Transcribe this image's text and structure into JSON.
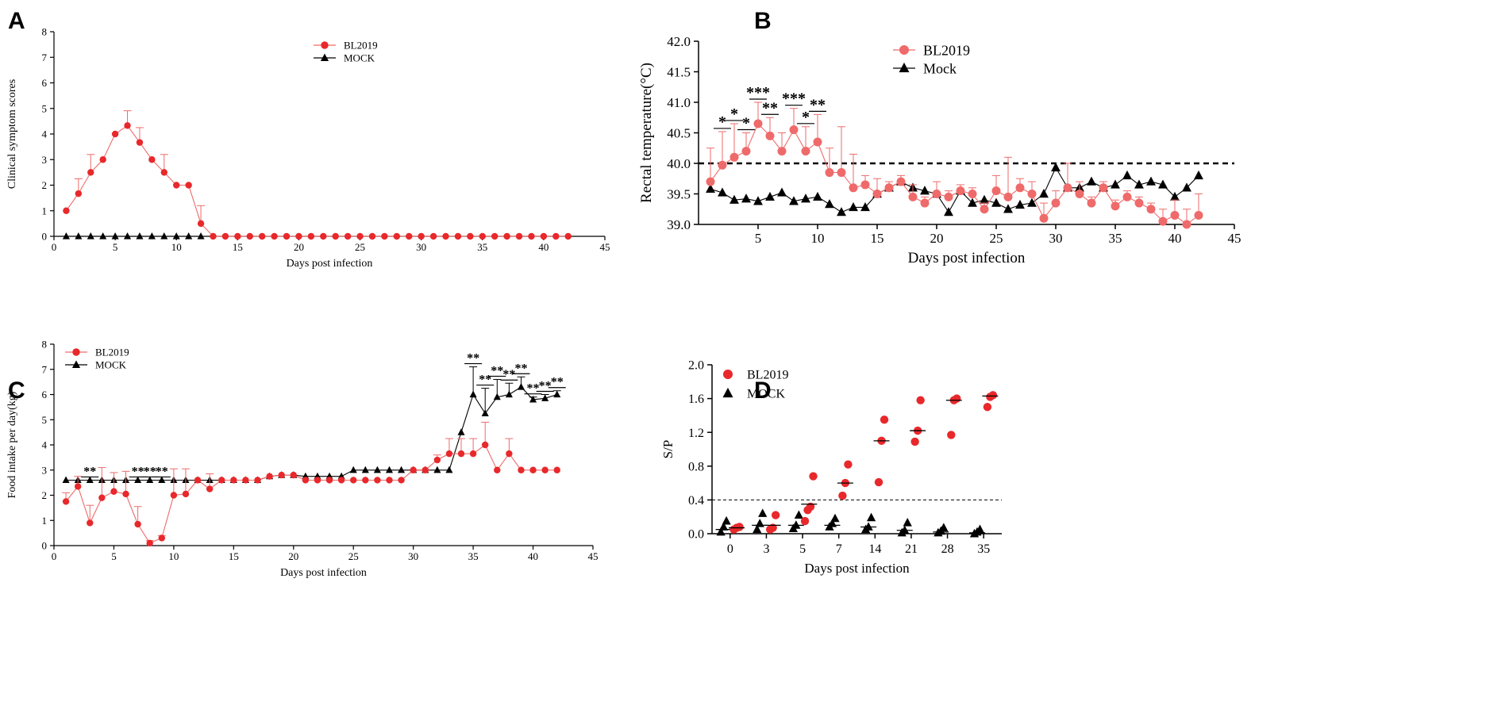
{
  "colors": {
    "bl": "#e8282b",
    "blLight": "#ef6a6a",
    "mock": "#000000"
  },
  "chart_data": [
    {
      "id": "A",
      "type": "line",
      "panel_label": "A",
      "xlabel": "Days post infection",
      "ylabel": "Clinical symptom scores",
      "xlim": [
        0,
        45
      ],
      "ylim": [
        0,
        8
      ],
      "xticks": [
        0,
        5,
        10,
        15,
        20,
        25,
        30,
        35,
        40,
        45
      ],
      "yticks": [
        0,
        1,
        2,
        3,
        4,
        5,
        6,
        7,
        8
      ],
      "legend": [
        "BL2019",
        "MOCK"
      ],
      "series": [
        {
          "name": "BL2019",
          "marker": "circle",
          "x": [
            1,
            2,
            3,
            4,
            5,
            6,
            7,
            8,
            9,
            10,
            11,
            12,
            13,
            14,
            15,
            16,
            17,
            18,
            19,
            20,
            21,
            22,
            23,
            24,
            25,
            26,
            27,
            28,
            29,
            30,
            31,
            32,
            33,
            34,
            35,
            36,
            37,
            38,
            39,
            40,
            41,
            42
          ],
          "y": [
            1,
            1.67,
            2.5,
            3,
            4,
            4.33,
            3.67,
            3,
            2.5,
            2,
            2,
            0.5,
            0,
            0,
            0,
            0,
            0,
            0,
            0,
            0,
            0,
            0,
            0,
            0,
            0,
            0,
            0,
            0,
            0,
            0,
            0,
            0,
            0,
            0,
            0,
            0,
            0,
            0,
            0,
            0,
            0,
            0
          ],
          "err": [
            0,
            0.58,
            0.7,
            0,
            0,
            0.58,
            0.58,
            0,
            0.7,
            0,
            0,
            0.7,
            0,
            0,
            0,
            0,
            0,
            0,
            0,
            0,
            0,
            0,
            0,
            0,
            0,
            0,
            0,
            0,
            0,
            0,
            0,
            0,
            0,
            0,
            0,
            0,
            0,
            0,
            0,
            0,
            0,
            0
          ]
        },
        {
          "name": "MOCK",
          "marker": "triangle",
          "x": [
            1,
            2,
            3,
            4,
            5,
            6,
            7,
            8,
            9,
            10,
            11,
            12
          ],
          "y": [
            0,
            0,
            0,
            0,
            0,
            0,
            0,
            0,
            0,
            0,
            0,
            0
          ]
        }
      ]
    },
    {
      "id": "B",
      "type": "line",
      "panel_label": "B",
      "xlabel": "Days post infection",
      "ylabel": "Rectal temperature(°C)",
      "xlim": [
        0,
        45
      ],
      "ylim": [
        39.0,
        42.0
      ],
      "xticks": [
        5,
        10,
        15,
        20,
        25,
        30,
        35,
        40,
        45
      ],
      "yticks": [
        39.0,
        39.5,
        40.0,
        40.5,
        41.0,
        41.5,
        42.0
      ],
      "ytick_labels": [
        "39.0",
        "39.5",
        "40.0",
        "40.5",
        "41.0",
        "41.5",
        "42.0"
      ],
      "threshold": 40.0,
      "legend": [
        "BL2019",
        "Mock"
      ],
      "series": [
        {
          "name": "BL2019",
          "marker": "circle",
          "x": [
            1,
            2,
            3,
            4,
            5,
            6,
            7,
            8,
            9,
            10,
            11,
            12,
            13,
            14,
            15,
            16,
            17,
            18,
            19,
            20,
            21,
            22,
            23,
            24,
            25,
            26,
            27,
            28,
            29,
            30,
            31,
            32,
            33,
            34,
            35,
            36,
            37,
            38,
            39,
            40,
            41,
            42
          ],
          "y": [
            39.7,
            39.97,
            40.1,
            40.2,
            40.65,
            40.45,
            40.2,
            40.55,
            40.2,
            40.35,
            39.85,
            39.85,
            39.6,
            39.65,
            39.5,
            39.6,
            39.7,
            39.45,
            39.35,
            39.5,
            39.45,
            39.55,
            39.5,
            39.25,
            39.55,
            39.45,
            39.6,
            39.5,
            39.1,
            39.35,
            39.6,
            39.5,
            39.35,
            39.6,
            39.3,
            39.45,
            39.35,
            39.25,
            39.05,
            39.15,
            39.0,
            39.15
          ],
          "err": [
            0.55,
            0.55,
            0.55,
            0.3,
            0.35,
            0.3,
            0.3,
            0.35,
            0.4,
            0.45,
            0.4,
            0.75,
            0.55,
            0.15,
            0.25,
            0.1,
            0.1,
            0.2,
            0.1,
            0.2,
            0.1,
            0.1,
            0.1,
            0.1,
            0.25,
            0.65,
            0.15,
            0.2,
            0.25,
            0.2,
            0.4,
            0.2,
            0.1,
            0.1,
            0.1,
            0.1,
            0.1,
            0.1,
            0.2,
            0.25,
            0.25,
            0.35
          ]
        },
        {
          "name": "Mock",
          "marker": "triangle",
          "x": [
            1,
            2,
            3,
            4,
            5,
            6,
            7,
            8,
            9,
            10,
            11,
            12,
            13,
            14,
            15,
            16,
            17,
            18,
            19,
            20,
            21,
            22,
            23,
            24,
            25,
            26,
            27,
            28,
            29,
            30,
            31,
            32,
            33,
            34,
            35,
            36,
            37,
            38,
            39,
            40,
            41,
            42
          ],
          "y": [
            39.58,
            39.52,
            39.4,
            39.42,
            39.38,
            39.45,
            39.52,
            39.38,
            39.42,
            39.45,
            39.33,
            39.2,
            39.28,
            39.28,
            39.5,
            39.6,
            39.7,
            39.6,
            39.55,
            39.5,
            39.2,
            39.55,
            39.35,
            39.4,
            39.35,
            39.25,
            39.32,
            39.35,
            39.5,
            39.93,
            39.6,
            39.6,
            39.7,
            39.6,
            39.65,
            39.8,
            39.65,
            39.7,
            39.65,
            39.45,
            39.6,
            39.8
          ]
        }
      ],
      "significance": [
        {
          "x": 2,
          "text": "*"
        },
        {
          "x": 3,
          "text": "*"
        },
        {
          "x": 4,
          "text": "*"
        },
        {
          "x": 5,
          "text": "***"
        },
        {
          "x": 6,
          "text": "**"
        },
        {
          "x": 8,
          "text": "***"
        },
        {
          "x": 9,
          "text": "*"
        },
        {
          "x": 10,
          "text": "**"
        }
      ]
    },
    {
      "id": "C",
      "type": "line",
      "panel_label": "C",
      "xlabel": "Days post infection",
      "ylabel": "Food intake per day(kg)",
      "xlim": [
        0,
        45
      ],
      "ylim": [
        0,
        8
      ],
      "xticks": [
        0,
        5,
        10,
        15,
        20,
        25,
        30,
        35,
        40,
        45
      ],
      "yticks": [
        0,
        1,
        2,
        3,
        4,
        5,
        6,
        7,
        8
      ],
      "legend": [
        "BL2019",
        "MOCK"
      ],
      "series": [
        {
          "name": "BL2019",
          "marker": "circle",
          "x": [
            1,
            2,
            3,
            4,
            5,
            6,
            7,
            8,
            9,
            10,
            11,
            12,
            13,
            14,
            15,
            16,
            17,
            18,
            19,
            20,
            21,
            22,
            23,
            24,
            25,
            26,
            27,
            28,
            29,
            30,
            31,
            32,
            33,
            34,
            35,
            36,
            37,
            38,
            39,
            40,
            41,
            42
          ],
          "y": [
            1.75,
            2.35,
            0.9,
            1.9,
            2.15,
            2.05,
            0.85,
            0.1,
            0.3,
            2.0,
            2.05,
            2.6,
            2.25,
            2.6,
            2.6,
            2.6,
            2.6,
            2.75,
            2.8,
            2.8,
            2.6,
            2.6,
            2.6,
            2.6,
            2.6,
            2.6,
            2.6,
            2.6,
            2.6,
            3.0,
            3.0,
            3.4,
            3.65,
            3.65,
            3.65,
            4.0,
            3.0,
            3.65,
            3.0,
            3.0,
            3.0,
            3.0
          ],
          "err": [
            0.35,
            0.4,
            0.7,
            1.2,
            0.75,
            0.9,
            0.7,
            0.1,
            0.1,
            1.05,
            1.0,
            0,
            0.6,
            0,
            0,
            0,
            0,
            0,
            0,
            0,
            0,
            0,
            0,
            0,
            0,
            0,
            0,
            0,
            0,
            0,
            0,
            0.2,
            0.6,
            0.6,
            0.6,
            0.9,
            0,
            0.6,
            0,
            0,
            0,
            0
          ]
        },
        {
          "name": "MOCK",
          "marker": "triangle",
          "x": [
            1,
            2,
            3,
            4,
            5,
            6,
            7,
            8,
            9,
            10,
            11,
            12,
            13,
            14,
            15,
            16,
            17,
            18,
            19,
            20,
            21,
            22,
            23,
            24,
            25,
            26,
            27,
            28,
            29,
            30,
            31,
            32,
            33,
            34,
            35,
            36,
            37,
            38,
            39,
            40,
            41,
            42
          ],
          "y": [
            2.6,
            2.6,
            2.6,
            2.6,
            2.6,
            2.6,
            2.6,
            2.6,
            2.6,
            2.6,
            2.6,
            2.6,
            2.6,
            2.6,
            2.6,
            2.6,
            2.6,
            2.75,
            2.8,
            2.8,
            2.75,
            2.75,
            2.75,
            2.75,
            3.0,
            3.0,
            3.0,
            3.0,
            3.0,
            3.0,
            3.0,
            3.0,
            3.0,
            4.5,
            6.0,
            5.25,
            5.9,
            6.0,
            6.3,
            5.8,
            5.85,
            6.0
          ],
          "err": [
            0,
            0,
            0,
            0,
            0,
            0,
            0,
            0,
            0,
            0,
            0,
            0,
            0,
            0,
            0,
            0,
            0,
            0,
            0,
            0,
            0,
            0,
            0,
            0,
            0,
            0,
            0,
            0,
            0,
            0,
            0,
            0,
            0,
            0,
            1.1,
            1.0,
            0.7,
            0.45,
            0.4,
            0.1,
            0.15,
            0.15
          ]
        }
      ],
      "significance": [
        {
          "x": 3,
          "text": "**"
        },
        {
          "x": 7,
          "text": "**"
        },
        {
          "x": 8,
          "text": "**"
        },
        {
          "x": 9,
          "text": "**"
        },
        {
          "x": 35,
          "text": "**"
        },
        {
          "x": 36,
          "text": "**"
        },
        {
          "x": 37,
          "text": "**"
        },
        {
          "x": 38,
          "text": "**"
        },
        {
          "x": 39,
          "text": "**"
        },
        {
          "x": 40,
          "text": "**"
        },
        {
          "x": 41,
          "text": "**"
        },
        {
          "x": 42,
          "text": "**"
        }
      ]
    },
    {
      "id": "D",
      "type": "scatter",
      "panel_label": "D",
      "xlabel": "Days post infection",
      "ylabel": "S/P",
      "categories": [
        "0",
        "3",
        "5",
        "7",
        "14",
        "21",
        "28",
        "35"
      ],
      "ylim": [
        0,
        2.0
      ],
      "yticks": [
        0.0,
        0.4,
        0.8,
        1.2,
        1.6,
        2.0
      ],
      "ytick_labels": [
        "0.0",
        "0.4",
        "0.8",
        "1.2",
        "1.6",
        "2.0"
      ],
      "threshold": 0.4,
      "legend": [
        "BL2019",
        "MOCK"
      ],
      "series": [
        {
          "name": "BL2019",
          "marker": "circle",
          "groups": [
            [
              0.05,
              0.07,
              0.08
            ],
            [
              0.05,
              0.07,
              0.22
            ],
            [
              0.15,
              0.28,
              0.32,
              0.68
            ],
            [
              0.45,
              0.6,
              0.82
            ],
            [
              0.61,
              1.1,
              1.35
            ],
            [
              1.09,
              1.22,
              1.58
            ],
            [
              1.17,
              1.58,
              1.6
            ],
            [
              1.5,
              1.62,
              1.64
            ]
          ],
          "means": [
            0.07,
            0.1,
            0.35,
            0.6,
            1.1,
            1.22,
            1.58,
            1.63
          ]
        },
        {
          "name": "MOCK",
          "marker": "triangle",
          "groups": [
            [
              0.02,
              0.08,
              0.15
            ],
            [
              0.05,
              0.12,
              0.24
            ],
            [
              0.06,
              0.1,
              0.22
            ],
            [
              0.08,
              0.12,
              0.18
            ],
            [
              0.05,
              0.08,
              0.19
            ],
            [
              0.01,
              0.04,
              0.13
            ],
            [
              0.01,
              0.03,
              0.07
            ],
            [
              0.0,
              0.02,
              0.05
            ]
          ],
          "means": [
            0.05,
            0.1,
            0.1,
            0.1,
            0.08,
            0.04,
            0.02,
            0.01
          ]
        }
      ]
    }
  ]
}
